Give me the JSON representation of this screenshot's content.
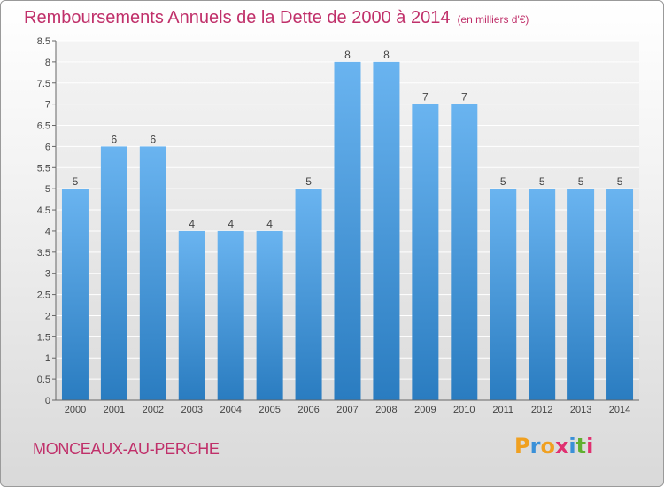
{
  "header": {
    "title": "Remboursements Annuels de la Dette de 2000 à 2014",
    "unit": "(en milliers d'€)"
  },
  "footer": {
    "commune": "MONCEAUX-AU-PERCHE",
    "logo_text": "Proxiti"
  },
  "colors": {
    "title": "#c0306a",
    "bar_light": "#6ab4f0",
    "bar_dark": "#2a7cc0",
    "logo_letters": [
      "#f0a020",
      "#3a90d8",
      "#f0a020",
      "#e03070",
      "#3a90d8",
      "#60b030",
      "#e03070"
    ]
  },
  "chart_data": {
    "type": "bar",
    "categories": [
      "2000",
      "2001",
      "2002",
      "2003",
      "2004",
      "2005",
      "2006",
      "2007",
      "2008",
      "2009",
      "2010",
      "2011",
      "2012",
      "2013",
      "2014"
    ],
    "values": [
      5,
      6,
      6,
      4,
      4,
      4,
      5,
      8,
      8,
      7,
      7,
      5,
      5,
      5,
      5
    ],
    "data_labels": [
      "5",
      "6",
      "6",
      "4",
      "4",
      "4",
      "5",
      "8",
      "8",
      "7",
      "7",
      "5",
      "5",
      "5",
      "5"
    ],
    "yticks": [
      0,
      0.5,
      1,
      1.5,
      2,
      2.5,
      3,
      3.5,
      4,
      4.5,
      5,
      5.5,
      6,
      6.5,
      7,
      7.5,
      8,
      8.5
    ],
    "ytick_labels": [
      "0",
      "0.5",
      "1",
      "1.5",
      "2",
      "2.5",
      "3",
      "3.5",
      "4",
      "4.5",
      "5",
      "5.5",
      "6",
      "6.5",
      "7",
      "7.5",
      "8",
      "8.5"
    ],
    "ylim": [
      0,
      8.5
    ],
    "grid": "horizontal",
    "title": "Remboursements Annuels de la Dette de 2000 à 2014",
    "xlabel": "",
    "ylabel": ""
  }
}
